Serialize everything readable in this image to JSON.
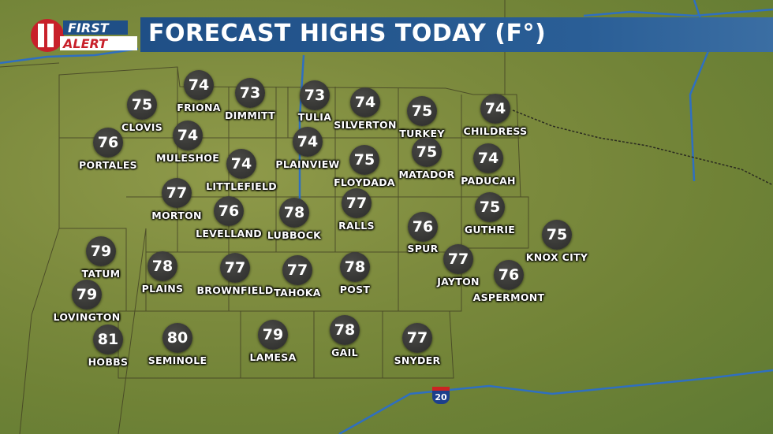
{
  "logo": {
    "text": "FIRST ALERT",
    "channel": "11",
    "colors": {
      "red": "#c8202a",
      "blue": "#1f4f86"
    }
  },
  "title": "FORECAST HIGHS TODAY (F°)",
  "highway_shield": "20",
  "colors": {
    "title_bar": "#1f4f86",
    "bubble": "#333331",
    "label": "#ffffff",
    "roads": "#2f6fc0"
  },
  "cities": [
    {
      "name": "FRIONA",
      "high": "74"
    },
    {
      "name": "DIMMITT",
      "high": "73"
    },
    {
      "name": "TULIA",
      "high": "73"
    },
    {
      "name": "SILVERTON",
      "high": "74"
    },
    {
      "name": "TURKEY",
      "high": "75"
    },
    {
      "name": "CHILDRESS",
      "high": "74"
    },
    {
      "name": "CLOVIS",
      "high": "75"
    },
    {
      "name": "PORTALES",
      "high": "76"
    },
    {
      "name": "MULESHOE",
      "high": "74"
    },
    {
      "name": "PLAINVIEW",
      "high": "74"
    },
    {
      "name": "FLOYDADA",
      "high": "75"
    },
    {
      "name": "MATADOR",
      "high": "75"
    },
    {
      "name": "PADUCAH",
      "high": "74"
    },
    {
      "name": "LITTLEFIELD",
      "high": "74"
    },
    {
      "name": "MORTON",
      "high": "77"
    },
    {
      "name": "LEVELLAND",
      "high": "76"
    },
    {
      "name": "LUBBOCK",
      "high": "78"
    },
    {
      "name": "RALLS",
      "high": "77"
    },
    {
      "name": "SPUR",
      "high": "76"
    },
    {
      "name": "GUTHRIE",
      "high": "75"
    },
    {
      "name": "KNOX CITY",
      "high": "75"
    },
    {
      "name": "TATUM",
      "high": "79"
    },
    {
      "name": "PLAINS",
      "high": "78"
    },
    {
      "name": "BROWNFIELD",
      "high": "77"
    },
    {
      "name": "TAHOKA",
      "high": "77"
    },
    {
      "name": "POST",
      "high": "78"
    },
    {
      "name": "JAYTON",
      "high": "77"
    },
    {
      "name": "ASPERMONT",
      "high": "76"
    },
    {
      "name": "LOVINGTON",
      "high": "79"
    },
    {
      "name": "HOBBS",
      "high": "81"
    },
    {
      "name": "SEMINOLE",
      "high": "80"
    },
    {
      "name": "LAMESA",
      "high": "79"
    },
    {
      "name": "GAIL",
      "high": "78"
    },
    {
      "name": "SNYDER",
      "high": "77"
    }
  ]
}
